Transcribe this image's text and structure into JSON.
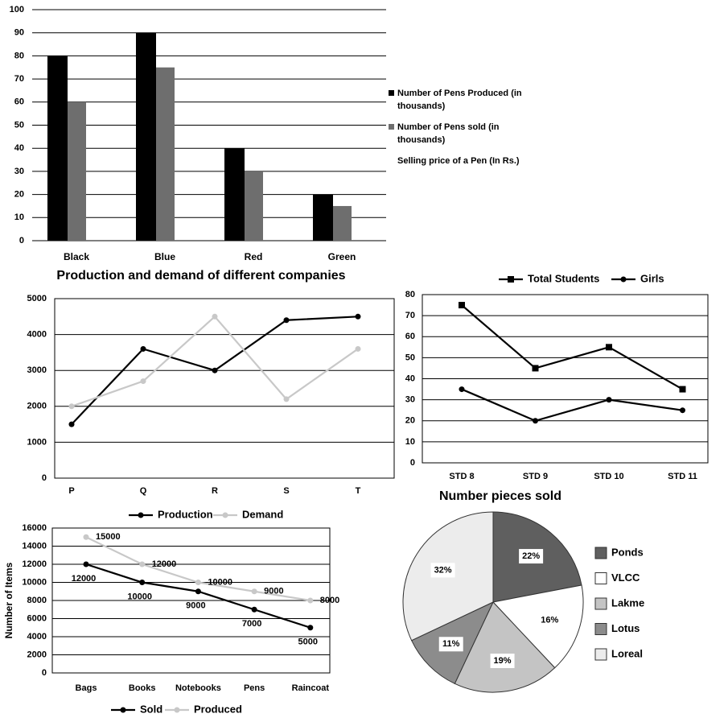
{
  "chart_data": [
    {
      "type": "bar",
      "categories": [
        "Black",
        "Blue",
        "Red",
        "Green"
      ],
      "series": [
        {
          "name": "Number of Pens Produced (in thousands)",
          "color": "#000000",
          "values": [
            80,
            90,
            40,
            20
          ]
        },
        {
          "name": "Number of Pens sold (in thousands)",
          "color": "#6e6e6e",
          "values": [
            60,
            75,
            30,
            15
          ]
        },
        {
          "name": "Selling price of a Pen (In Rs.)",
          "color": "#ffffff",
          "values": [
            null,
            null,
            null,
            null
          ]
        }
      ],
      "ylim": [
        0,
        100
      ],
      "yticks": [
        0,
        10,
        20,
        30,
        40,
        50,
        60,
        70,
        80,
        90,
        100
      ],
      "grid": true,
      "legend": "right"
    },
    {
      "type": "line",
      "title": "Production and demand of different companies",
      "categories": [
        "P",
        "Q",
        "R",
        "S",
        "T"
      ],
      "series": [
        {
          "name": "Production",
          "color": "#000000",
          "marker": "circle",
          "values": [
            1500,
            3600,
            3000,
            4400,
            4500
          ]
        },
        {
          "name": "Demand",
          "color": "#c8c8c8",
          "marker": "circle",
          "values": [
            2000,
            2700,
            4500,
            2200,
            3600
          ]
        }
      ],
      "ylim": [
        0,
        5000
      ],
      "yticks": [
        0,
        1000,
        2000,
        3000,
        4000,
        5000
      ],
      "grid": true,
      "legend": "bottom"
    },
    {
      "type": "line",
      "categories": [
        "STD 8",
        "STD 9",
        "STD 10",
        "STD 11"
      ],
      "series": [
        {
          "name": "Total Students",
          "color": "#000000",
          "marker": "square",
          "values": [
            75,
            45,
            55,
            35
          ]
        },
        {
          "name": "Girls",
          "color": "#000000",
          "marker": "circle",
          "values": [
            35,
            20,
            30,
            25
          ]
        }
      ],
      "ylim": [
        0,
        80
      ],
      "yticks": [
        0,
        10,
        20,
        30,
        40,
        50,
        60,
        70,
        80
      ],
      "grid": true,
      "legend": "top"
    },
    {
      "type": "line",
      "y_label": "Number of Items",
      "categories": [
        "Bags",
        "Books",
        "Notebooks",
        "Pens",
        "Raincoat"
      ],
      "series": [
        {
          "name": "Sold",
          "color": "#000000",
          "marker": "circle",
          "values": [
            12000,
            10000,
            9000,
            7000,
            5000
          ]
        },
        {
          "name": "Produced",
          "color": "#c8c8c8",
          "marker": "circle",
          "values": [
            15000,
            12000,
            10000,
            9000,
            8000
          ]
        }
      ],
      "ylim": [
        0,
        16000
      ],
      "yticks": [
        0,
        2000,
        4000,
        6000,
        8000,
        10000,
        12000,
        14000,
        16000
      ],
      "grid": true,
      "legend": "bottom",
      "data_labels": true
    },
    {
      "type": "pie",
      "title": "Number pieces sold",
      "categories": [
        "Ponds",
        "VLCC",
        "Lakme",
        "Lotus",
        "Loreal"
      ],
      "values": [
        22,
        16,
        19,
        11,
        32
      ],
      "value_labels": [
        "22%",
        "16%",
        "19%",
        "11%",
        "32%"
      ],
      "colors": [
        "#5f5f5f",
        "#ffffff",
        "#c4c4c4",
        "#8c8c8c",
        "#ececec"
      ],
      "legend": "right"
    }
  ]
}
